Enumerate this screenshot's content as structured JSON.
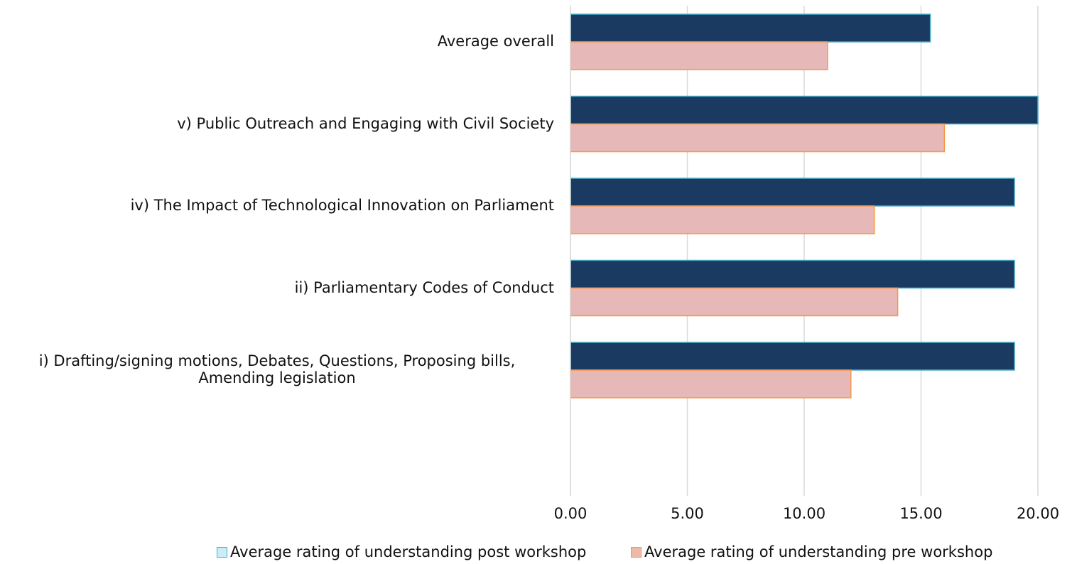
{
  "chart_data": {
    "type": "barh",
    "categories": [
      "Average overall",
      "v) Public Outreach and Engaging with Civil Society",
      "iv) The Impact of Technological Innovation on Parliament",
      "ii) Parliamentary Codes of Conduct",
      "i) Drafting/signing motions, Debates, Questions, Proposing bills, Amending legislation",
      null
    ],
    "series": [
      {
        "name": "Average rating of understanding post workshop",
        "color": "#1b3a61",
        "edgecolor": "#4bacc6",
        "legend_fill": "#c9eef8",
        "values": [
          15.4,
          20,
          19,
          19,
          19,
          0
        ]
      },
      {
        "name": "Average rating of understanding pre workshop",
        "color": "#e6b8b7",
        "edgecolor": "#f79646",
        "legend_fill": "#efb9a8",
        "values": [
          11,
          16,
          13,
          14,
          12,
          0
        ]
      }
    ],
    "xlim": [
      0,
      20
    ],
    "xticks": [
      {
        "value": 0,
        "label": "0.00"
      },
      {
        "value": 5,
        "label": "5.00"
      },
      {
        "value": 10,
        "label": "10.00"
      },
      {
        "value": 15,
        "label": "15.00"
      },
      {
        "value": 20,
        "label": "20.00"
      }
    ],
    "grid": true,
    "legend": "bottom"
  }
}
